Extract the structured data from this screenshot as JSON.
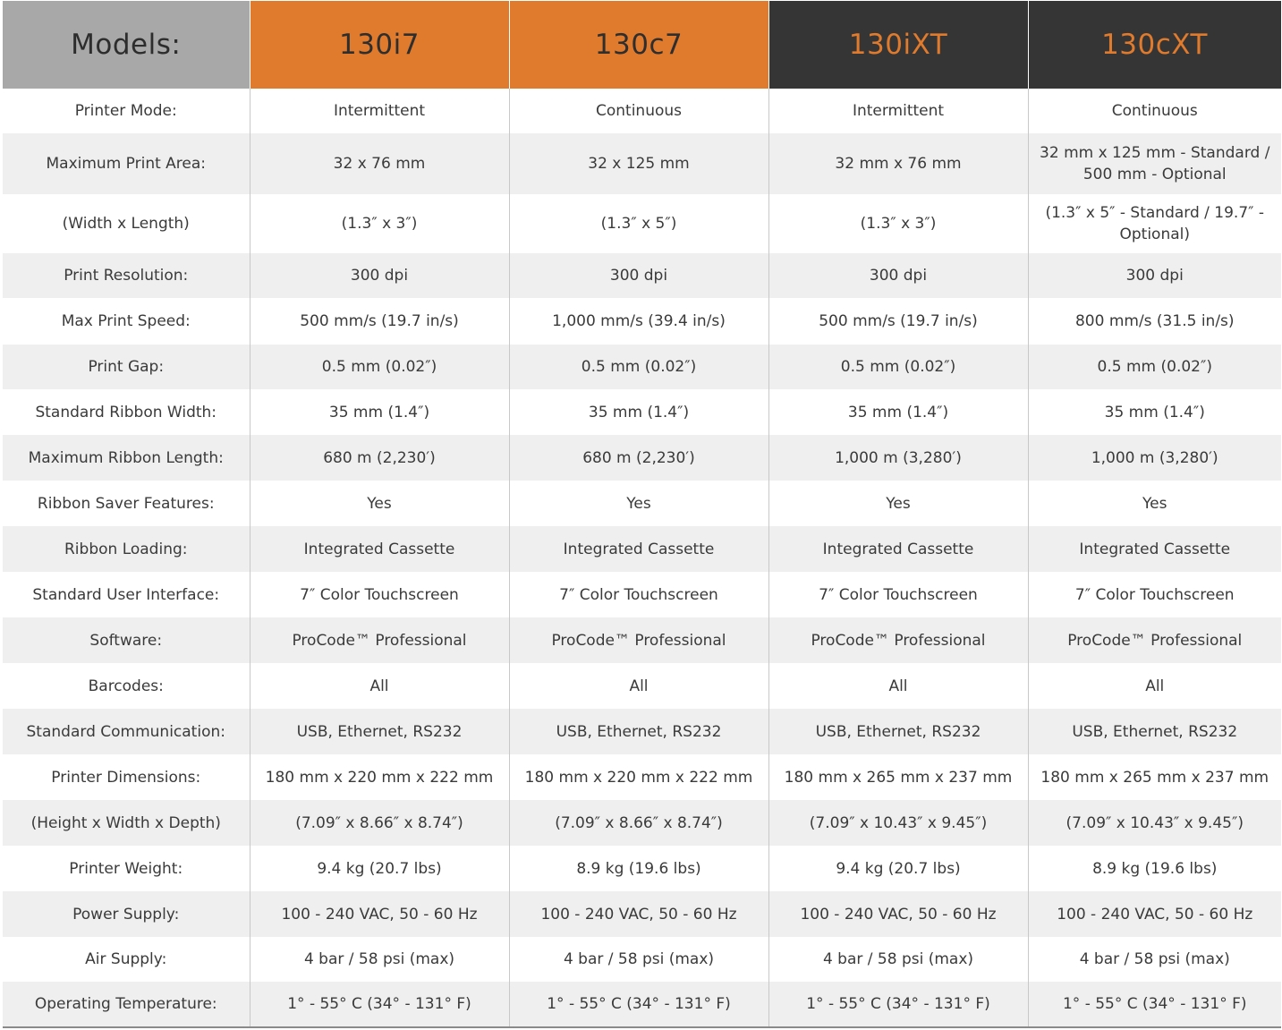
{
  "header": {
    "label": "Models:",
    "models": [
      "130i7",
      "130c7",
      "130iXT",
      "130cXT"
    ],
    "colors": {
      "label_bg": "#a8a8a8",
      "orange": "#e07b2d",
      "dark": "#353535"
    }
  },
  "rows": [
    {
      "label": "Printer Mode:",
      "values": [
        "Intermittent",
        "Continuous",
        "Intermittent",
        "Continuous"
      ]
    },
    {
      "label": "Maximum Print Area:",
      "values": [
        "32 x 76 mm",
        "32 x 125 mm",
        "32 mm x 76 mm",
        "32 mm x 125 mm - Standard / 500 mm - Optional"
      ]
    },
    {
      "label": "(Width x Length)",
      "values": [
        "(1.3″ x 3″)",
        "(1.3″ x 5″)",
        "(1.3″ x 3″)",
        "(1.3″ x 5″ - Standard / 19.7″ - Optional)"
      ]
    },
    {
      "label": "Print Resolution:",
      "values": [
        "300 dpi",
        "300 dpi",
        "300 dpi",
        "300 dpi"
      ]
    },
    {
      "label": "Max Print Speed:",
      "values": [
        "500 mm/s  (19.7 in/s)",
        "1,000 mm/s  (39.4 in/s)",
        "500 mm/s (19.7 in/s)",
        "800 mm/s  (31.5 in/s)"
      ]
    },
    {
      "label": "Print Gap:",
      "values": [
        "0.5 mm  (0.02″)",
        "0.5 mm  (0.02″)",
        "0.5 mm  (0.02″)",
        "0.5 mm  (0.02″)"
      ]
    },
    {
      "label": "Standard Ribbon Width:",
      "values": [
        "35 mm  (1.4″)",
        "35 mm  (1.4″)",
        "35 mm  (1.4″)",
        "35 mm  (1.4″)"
      ]
    },
    {
      "label": "Maximum Ribbon Length:",
      "values": [
        "680 m  (2,230′)",
        "680 m  (2,230′)",
        "1,000 m  (3,280′)",
        "1,000 m  (3,280′)"
      ]
    },
    {
      "label": "Ribbon Saver Features:",
      "values": [
        "Yes",
        "Yes",
        "Yes",
        "Yes"
      ]
    },
    {
      "label": "Ribbon Loading:",
      "values": [
        "Integrated Cassette",
        "Integrated Cassette",
        "Integrated Cassette",
        "Integrated Cassette"
      ]
    },
    {
      "label": "Standard User Interface:",
      "values": [
        "7″ Color Touchscreen",
        "7″ Color Touchscreen",
        "7″ Color Touchscreen",
        "7″ Color Touchscreen"
      ]
    },
    {
      "label": "Software:",
      "values": [
        "ProCode™ Professional",
        "ProCode™ Professional",
        "ProCode™ Professional",
        "ProCode™ Professional"
      ]
    },
    {
      "label": "Barcodes:",
      "values": [
        "All",
        "All",
        "All",
        "All"
      ]
    },
    {
      "label": "Standard Communication:",
      "values": [
        "USB, Ethernet, RS232",
        "USB, Ethernet, RS232",
        "USB, Ethernet, RS232",
        "USB, Ethernet, RS232"
      ]
    },
    {
      "label": "Printer Dimensions:",
      "values": [
        "180 mm x 220 mm x 222 mm",
        "180 mm x 220 mm x 222 mm",
        "180 mm x 265 mm x 237 mm",
        "180 mm x 265 mm x 237 mm"
      ]
    },
    {
      "label": "(Height x Width x Depth)",
      "values": [
        "(7.09″ x 8.66″ x 8.74″)",
        "(7.09″ x 8.66″ x 8.74″)",
        "(7.09″ x 10.43″ x 9.45″)",
        "(7.09″ x 10.43″ x 9.45″)"
      ]
    },
    {
      "label": "Printer Weight:",
      "values": [
        "9.4 kg  (20.7 lbs)",
        "8.9 kg  (19.6 lbs)",
        "9.4 kg  (20.7 lbs)",
        "8.9 kg  (19.6 lbs)"
      ]
    },
    {
      "label": "Power Supply:",
      "values": [
        "100 - 240 VAC,  50 - 60 Hz",
        "100 - 240 VAC,  50 - 60 Hz",
        "100 - 240 VAC,  50 - 60 Hz",
        "100 - 240 VAC,  50 - 60 Hz"
      ]
    },
    {
      "label": "Air Supply:",
      "values": [
        "4 bar / 58 psi (max)",
        "4 bar / 58 psi (max)",
        "4 bar / 58 psi (max)",
        "4 bar / 58 psi (max)"
      ]
    },
    {
      "label": "Operating Temperature:",
      "values": [
        "1° - 55° C  (34° - 131° F)",
        "1° - 55° C  (34° - 131° F)",
        "1° - 55° C  (34° - 131° F)",
        "1° - 55° C  (34° - 131° F)"
      ]
    }
  ]
}
